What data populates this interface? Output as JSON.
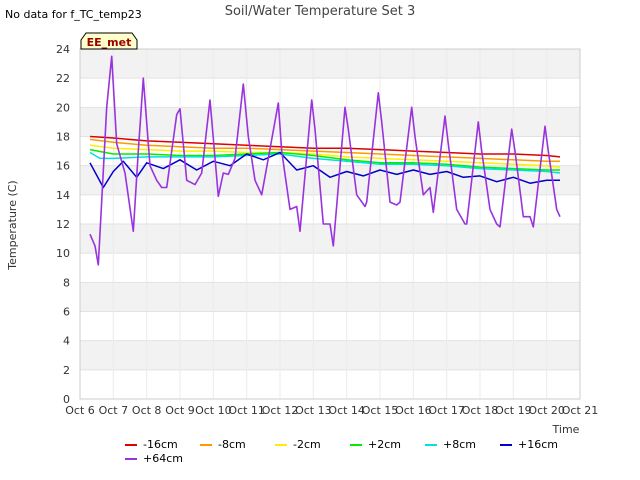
{
  "header": {
    "nodata": "No data for f_TC_temp23",
    "title": "Soil/Water Temperature Set 3"
  },
  "badge": {
    "label": "EE_met"
  },
  "chart_data": {
    "type": "line",
    "title": "Soil/Water Temperature Set 3",
    "xlabel": "Time",
    "ylabel": "Temperature (C)",
    "xlim": [
      6,
      21
    ],
    "ylim": [
      0,
      24
    ],
    "x_ticks": [
      6,
      7,
      8,
      9,
      10,
      11,
      12,
      13,
      14,
      15,
      16,
      17,
      18,
      19,
      20,
      21
    ],
    "x_tick_labels": [
      "Oct 6",
      "Oct 7",
      "Oct 8",
      "Oct 9",
      "Oct 10",
      "Oct 11",
      "Oct 12",
      "Oct 13",
      "Oct 14",
      "Oct 15",
      "Oct 16",
      "Oct 17",
      "Oct 18",
      "Oct 19",
      "Oct 20",
      "Oct 21"
    ],
    "y_ticks": [
      0,
      2,
      4,
      6,
      8,
      10,
      12,
      14,
      16,
      18,
      20,
      22,
      24
    ],
    "grid": true,
    "legend_position": "bottom",
    "series": [
      {
        "name": "-16cm",
        "color": "#dd0000",
        "x": [
          6.3,
          7,
          8,
          9,
          10,
          11,
          12,
          13,
          14,
          15,
          16,
          17,
          18,
          19,
          20,
          20.4
        ],
        "y": [
          18.0,
          17.9,
          17.7,
          17.6,
          17.5,
          17.4,
          17.3,
          17.2,
          17.2,
          17.1,
          17.0,
          16.9,
          16.8,
          16.8,
          16.7,
          16.6
        ]
      },
      {
        "name": "-8cm",
        "color": "#ff9900",
        "x": [
          6.3,
          7,
          8,
          9,
          10,
          11,
          12,
          13,
          14,
          15,
          16,
          17,
          18,
          19,
          20,
          20.4
        ],
        "y": [
          17.8,
          17.6,
          17.4,
          17.3,
          17.2,
          17.2,
          17.1,
          17.0,
          16.9,
          16.8,
          16.7,
          16.6,
          16.5,
          16.4,
          16.3,
          16.3
        ]
      },
      {
        "name": "-2cm",
        "color": "#ffee00",
        "x": [
          6.3,
          7,
          8,
          9,
          10,
          11,
          12,
          13,
          14,
          15,
          16,
          17,
          18,
          19,
          20,
          20.4
        ],
        "y": [
          17.4,
          17.2,
          17.1,
          17.0,
          17.0,
          16.9,
          16.9,
          16.8,
          16.6,
          16.5,
          16.4,
          16.3,
          16.2,
          16.1,
          16.0,
          15.9
        ]
      },
      {
        "name": "+2cm",
        "color": "#00ee00",
        "x": [
          6.3,
          7,
          8,
          9,
          10,
          11,
          12,
          13,
          14,
          15,
          16,
          17,
          18,
          19,
          20,
          20.4
        ],
        "y": [
          17.1,
          16.8,
          16.8,
          16.7,
          16.7,
          16.8,
          16.9,
          16.7,
          16.4,
          16.2,
          16.2,
          16.1,
          15.9,
          15.8,
          15.7,
          15.7
        ]
      },
      {
        "name": "+8cm",
        "color": "#00e0e0",
        "x": [
          6.3,
          6.6,
          7,
          8,
          9,
          10,
          11,
          12,
          13,
          14,
          15,
          16,
          17,
          18,
          19,
          20,
          20.4
        ],
        "y": [
          16.9,
          16.5,
          16.5,
          16.6,
          16.6,
          16.6,
          16.7,
          16.8,
          16.5,
          16.3,
          16.1,
          16.1,
          16.0,
          15.8,
          15.7,
          15.6,
          15.5
        ]
      },
      {
        "name": "+16cm",
        "color": "#0000cc",
        "x": [
          6.3,
          6.7,
          7,
          7.3,
          7.7,
          8,
          8.5,
          9,
          9.5,
          10,
          10.5,
          11,
          11.5,
          12,
          12.5,
          13,
          13.5,
          14,
          14.5,
          15,
          15.5,
          16,
          16.5,
          17,
          17.5,
          18,
          18.5,
          19,
          19.5,
          20,
          20.4
        ],
        "y": [
          16.2,
          14.5,
          15.6,
          16.3,
          15.2,
          16.2,
          15.8,
          16.4,
          15.7,
          16.3,
          16.0,
          16.8,
          16.4,
          16.9,
          15.7,
          16.0,
          15.2,
          15.6,
          15.3,
          15.7,
          15.4,
          15.7,
          15.4,
          15.6,
          15.2,
          15.3,
          14.9,
          15.2,
          14.8,
          15.0,
          15.0
        ]
      },
      {
        "name": "+64cm",
        "color": "#9933dd",
        "x": [
          6.3,
          6.45,
          6.55,
          6.8,
          6.95,
          7.1,
          7.35,
          7.6,
          7.75,
          7.9,
          8.1,
          8.3,
          8.45,
          8.6,
          8.9,
          9.0,
          9.2,
          9.45,
          9.65,
          9.9,
          10.15,
          10.3,
          10.45,
          10.65,
          10.9,
          11.05,
          11.25,
          11.45,
          11.65,
          11.95,
          12.05,
          12.3,
          12.5,
          12.6,
          12.95,
          13.05,
          13.3,
          13.5,
          13.6,
          13.95,
          14.05,
          14.3,
          14.55,
          14.6,
          14.95,
          15.05,
          15.3,
          15.5,
          15.6,
          15.95,
          16.05,
          16.3,
          16.5,
          16.6,
          16.95,
          17.05,
          17.3,
          17.55,
          17.6,
          17.95,
          18.05,
          18.3,
          18.5,
          18.6,
          18.95,
          19.05,
          19.3,
          19.5,
          19.6,
          19.95,
          20.05,
          20.3,
          20.4
        ],
        "y": [
          11.3,
          10.5,
          9.2,
          20.0,
          23.5,
          17.5,
          15.5,
          11.5,
          17.0,
          22.0,
          16.0,
          15.0,
          14.5,
          14.5,
          19.5,
          19.9,
          15.0,
          14.7,
          15.5,
          20.5,
          13.9,
          15.5,
          15.4,
          16.5,
          21.6,
          18.0,
          15.0,
          14.0,
          16.5,
          20.3,
          17.0,
          13.0,
          13.2,
          11.5,
          20.5,
          18.5,
          12.0,
          12.0,
          10.5,
          20.0,
          18.5,
          14.0,
          13.2,
          13.5,
          21.0,
          19.0,
          13.5,
          13.3,
          13.5,
          20.0,
          18.0,
          14.0,
          14.5,
          12.8,
          19.4,
          17.5,
          13.0,
          12.0,
          12.0,
          19.0,
          17.0,
          13.0,
          12.0,
          11.8,
          18.5,
          17.0,
          12.5,
          12.5,
          11.8,
          18.7,
          17.0,
          13.0,
          12.5
        ]
      }
    ]
  }
}
